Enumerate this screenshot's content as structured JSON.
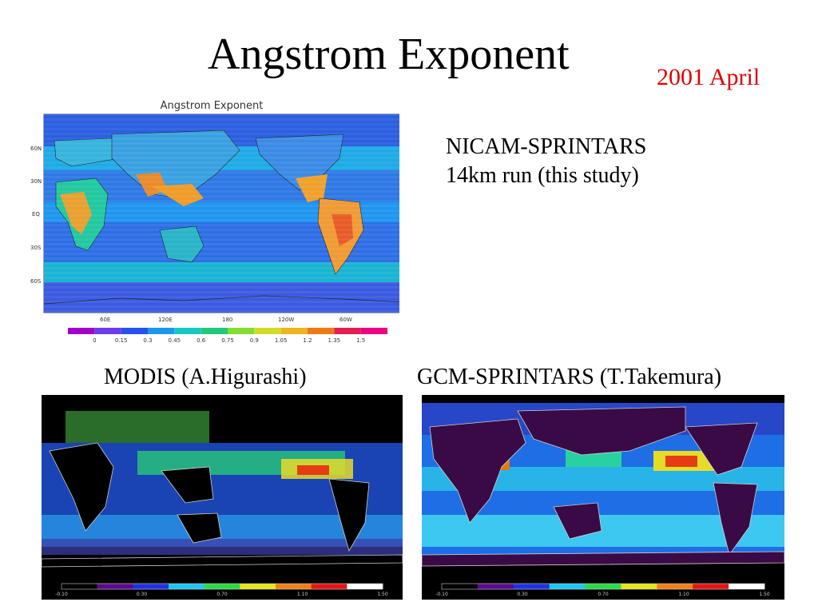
{
  "slide": {
    "title": "Angstrom Exponent",
    "date": "2001 April"
  },
  "top_panel": {
    "plot_title": "Angstrom Exponent",
    "label_line1": "NICAM-SPRINTARS",
    "label_line2": "14km run (this study)",
    "lat_ticks": [
      "60N",
      "30N",
      "EQ",
      "30S",
      "60S"
    ],
    "lon_ticks": [
      "60E",
      "120E",
      "180",
      "120W",
      "60W"
    ],
    "colorbar_labels": [
      "0",
      "0.15",
      "0.3",
      "0.45",
      "0.6",
      "0.75",
      "0.9",
      "1.05",
      "1.2",
      "1.35",
      "1.5"
    ],
    "colorbar_colors": [
      "#a000c8",
      "#6e3cf0",
      "#2850f0",
      "#1e96f0",
      "#14c8c8",
      "#20c878",
      "#82dc32",
      "#d2dc28",
      "#f0b41e",
      "#f07814",
      "#e61e50",
      "#f00082"
    ]
  },
  "bottom_left": {
    "caption": "MODIS (A.Higurashi)",
    "colorbar_labels": [
      "-0.10",
      "0.30",
      "0.70",
      "1.10",
      "1.50"
    ]
  },
  "bottom_right": {
    "caption": "GCM-SPRINTARS (T.Takemura)",
    "colorbar_labels": [
      "-0.10",
      "0.30",
      "0.70",
      "1.10",
      "1.50"
    ]
  },
  "colors": {
    "ocean_base": "#2e78e6",
    "land_high": "#e8782c",
    "date_red": "#e00000"
  }
}
